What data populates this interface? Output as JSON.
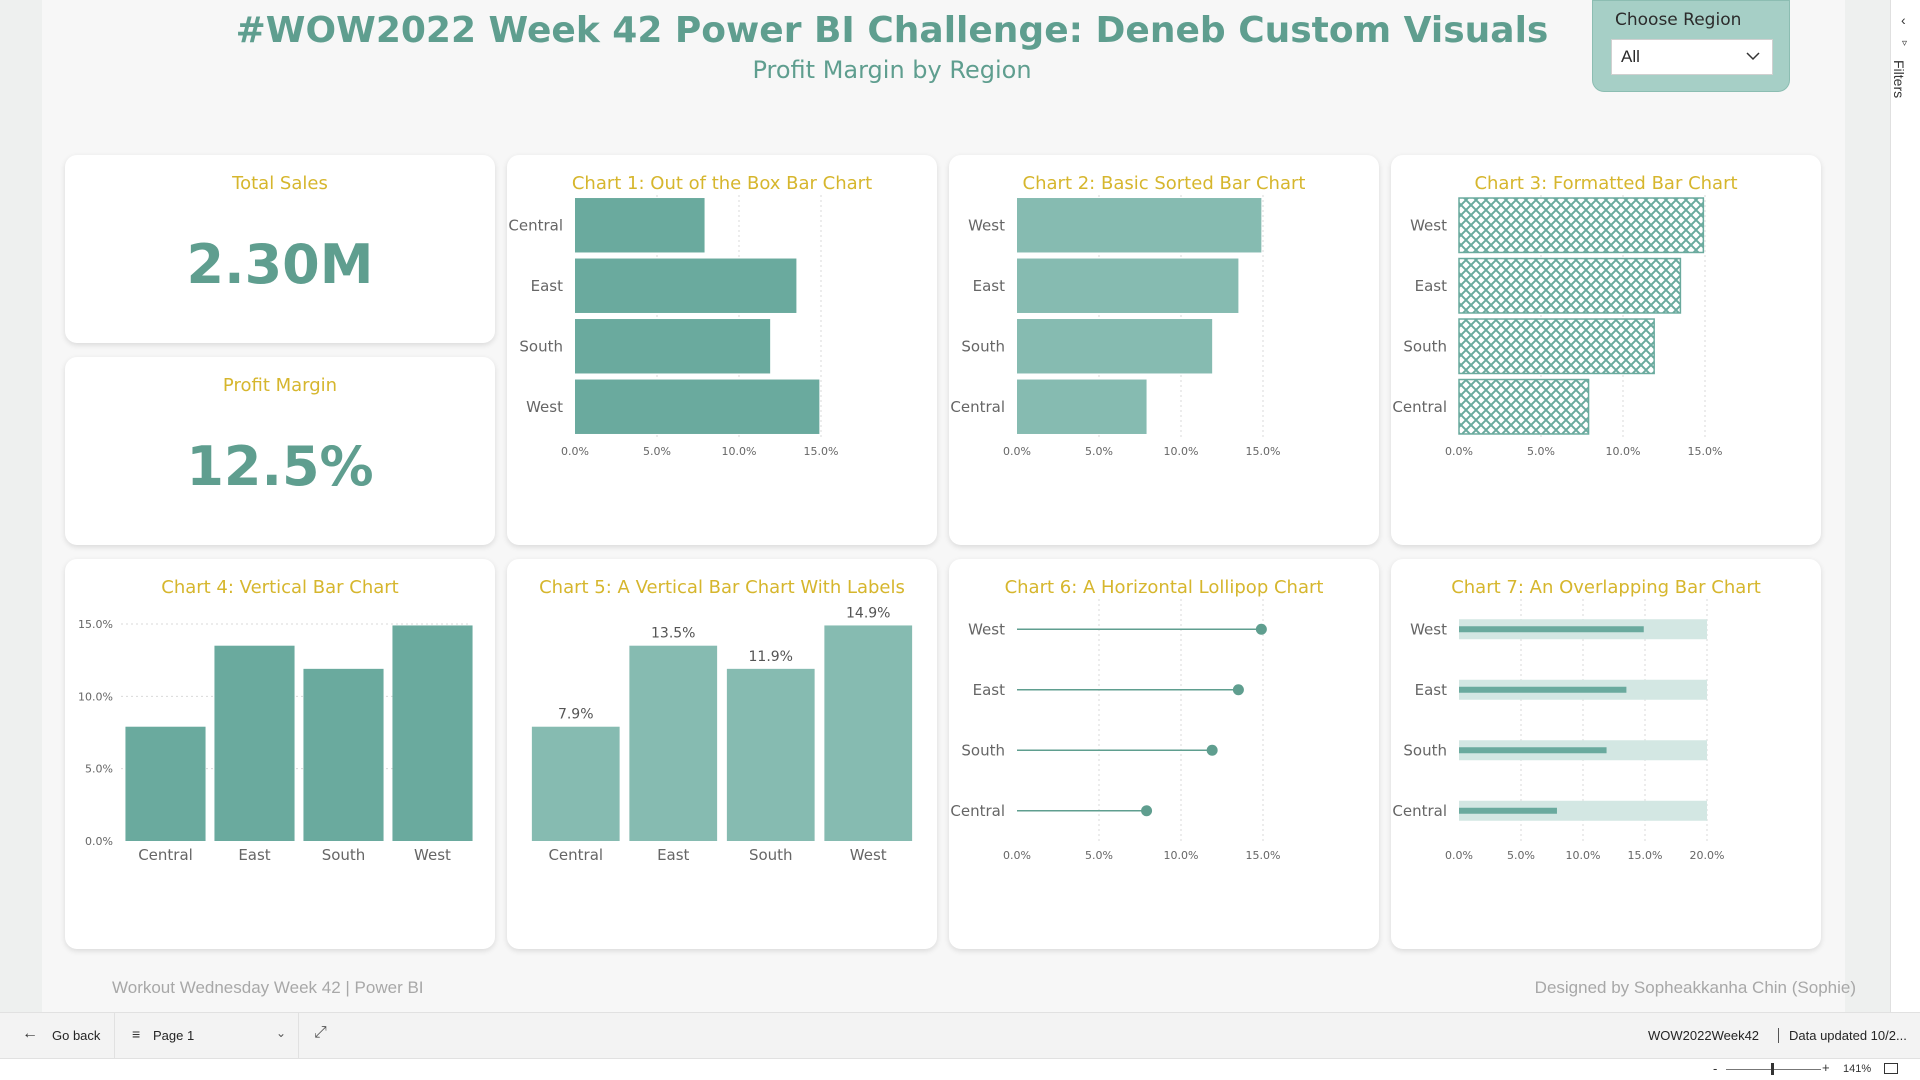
{
  "header": {
    "title": "#WOW2022 Week 42 Power BI Challenge: Deneb Custom Visuals",
    "subtitle": "Profit Margin by Region"
  },
  "slicer": {
    "title": "Choose Region",
    "value": "All"
  },
  "kpis": {
    "sales": {
      "label": "Total Sales",
      "value": "2.30M"
    },
    "margin": {
      "label": "Profit Margin",
      "value": "12.5%"
    }
  },
  "cards": {
    "chart1": {
      "title": "Chart 1: Out of the Box Bar Chart"
    },
    "chart2": {
      "title": "Chart 2: Basic Sorted Bar Chart"
    },
    "chart3": {
      "title": "Chart 3: Formatted Bar Chart"
    },
    "chart4": {
      "title": "Chart 4: Vertical Bar Chart"
    },
    "chart5": {
      "title": "Chart 5: A Vertical Bar Chart With Labels"
    },
    "chart6": {
      "title": "Chart 6: A Horizontal Lollipop Chart"
    },
    "chart7": {
      "title": "Chart 7: An Overlapping Bar Chart"
    }
  },
  "chart_data": [
    {
      "id": "chart1",
      "type": "bar",
      "orientation": "horizontal",
      "title": "Chart 1: Out of the Box Bar Chart",
      "categories": [
        "Central",
        "East",
        "South",
        "West"
      ],
      "values": [
        7.9,
        13.5,
        11.9,
        14.9
      ],
      "xlim": [
        0,
        15
      ],
      "ticks": [
        "0.0%",
        "5.0%",
        "10.0%",
        "15.0%"
      ],
      "grid": true,
      "color": "#6aaa9e"
    },
    {
      "id": "chart2",
      "type": "bar",
      "orientation": "horizontal",
      "title": "Chart 2: Basic Sorted Bar Chart",
      "categories": [
        "West",
        "East",
        "South",
        "Central"
      ],
      "values": [
        14.9,
        13.5,
        11.9,
        7.9
      ],
      "xlim": [
        0,
        15
      ],
      "ticks": [
        "0.0%",
        "5.0%",
        "10.0%",
        "15.0%"
      ],
      "grid": true,
      "color": "#86bbb1"
    },
    {
      "id": "chart3",
      "type": "bar",
      "orientation": "horizontal",
      "title": "Chart 3: Formatted Bar Chart",
      "categories": [
        "West",
        "East",
        "South",
        "Central"
      ],
      "values": [
        14.9,
        13.5,
        11.9,
        7.9
      ],
      "xlim": [
        0,
        15
      ],
      "ticks": [
        "0.0%",
        "5.0%",
        "10.0%",
        "15.0%"
      ],
      "grid": true,
      "fill": "crosshatch",
      "color": "#6aaa9e"
    },
    {
      "id": "chart4",
      "type": "bar",
      "orientation": "vertical",
      "title": "Chart 4: Vertical Bar Chart",
      "categories": [
        "Central",
        "East",
        "South",
        "West"
      ],
      "values": [
        7.9,
        13.5,
        11.9,
        14.9
      ],
      "ylim": [
        0,
        15
      ],
      "ticks": [
        "0.0%",
        "5.0%",
        "10.0%",
        "15.0%"
      ],
      "grid": true,
      "color": "#6aaa9e"
    },
    {
      "id": "chart5",
      "type": "bar",
      "orientation": "vertical",
      "title": "Chart 5: A Vertical Bar Chart With Labels",
      "categories": [
        "Central",
        "East",
        "South",
        "West"
      ],
      "values": [
        7.9,
        13.5,
        11.9,
        14.9
      ],
      "labels": [
        "7.9%",
        "13.5%",
        "11.9%",
        "14.9%"
      ],
      "ylim": [
        0,
        15
      ],
      "grid": false,
      "color": "#86bbb1"
    },
    {
      "id": "chart6",
      "type": "lollipop",
      "orientation": "horizontal",
      "title": "Chart 6: A Horizontal Lollipop Chart",
      "categories": [
        "West",
        "East",
        "South",
        "Central"
      ],
      "values": [
        14.9,
        13.5,
        11.9,
        7.9
      ],
      "xlim": [
        0,
        15
      ],
      "ticks": [
        "0.0%",
        "5.0%",
        "10.0%",
        "15.0%"
      ],
      "grid": true,
      "color": "#5f9e8f"
    },
    {
      "id": "chart7",
      "type": "bar",
      "orientation": "horizontal",
      "variant": "overlapping",
      "title": "Chart 7: An Overlapping Bar Chart",
      "categories": [
        "West",
        "East",
        "South",
        "Central"
      ],
      "values": [
        14.9,
        13.5,
        11.9,
        7.9
      ],
      "background_values": [
        20,
        20,
        20,
        20
      ],
      "xlim": [
        0,
        20
      ],
      "ticks": [
        "0.0%",
        "5.0%",
        "10.0%",
        "15.0%",
        "20.0%"
      ],
      "grid": true,
      "color": "#6aaa9e",
      "background_color": "#d3e7e3"
    }
  ],
  "footer": {
    "left": "Workout Wednesday Week 42 | Power BI",
    "right": "Designed by Sopheakkanha Chin (Sophie)"
  },
  "filters_pane": {
    "label": "Filters"
  },
  "bottom_bar": {
    "back_label": "Go back",
    "page_label": "Page 1",
    "report_name": "WOW2022Week42",
    "data_updated": "Data updated 10/2..."
  },
  "zoom": {
    "percent": "141%",
    "level": 0.48
  }
}
